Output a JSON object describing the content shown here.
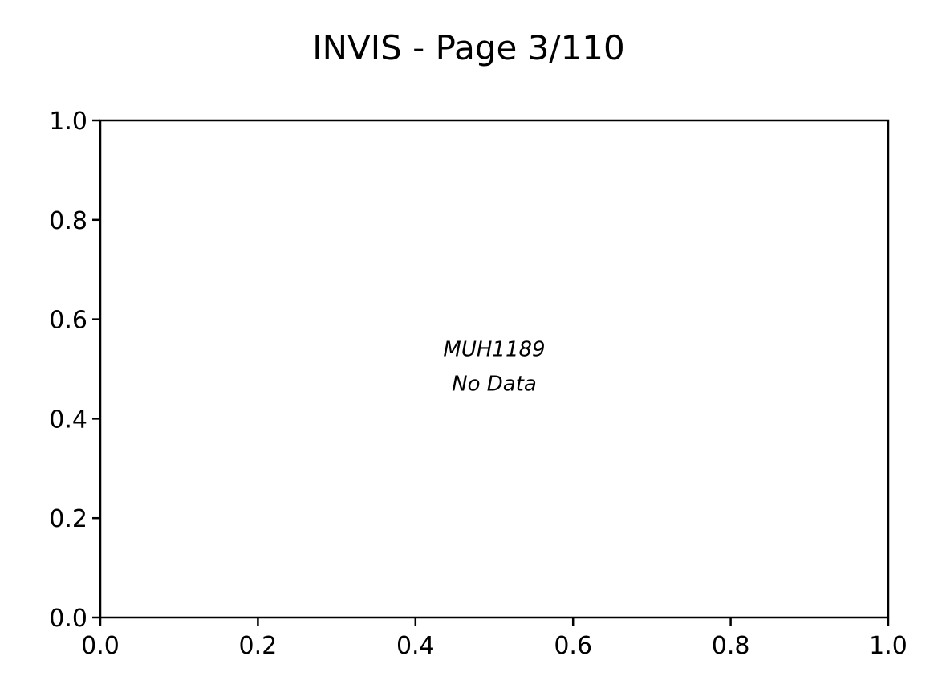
{
  "chart_data": {
    "type": "scatter",
    "title": "INVIS - Page 3/110",
    "xlabel": "",
    "ylabel": "",
    "xlim": [
      0.0,
      1.0
    ],
    "ylim": [
      0.0,
      1.0
    ],
    "x_ticks": [
      "0.0",
      "0.2",
      "0.4",
      "0.6",
      "0.8",
      "1.0"
    ],
    "y_ticks": [
      "0.0",
      "0.2",
      "0.4",
      "0.6",
      "0.8",
      "1.0"
    ],
    "grid": false,
    "series": [],
    "annotation": {
      "line1": "MUH1189",
      "line2": "No Data",
      "x": 0.5,
      "y": 0.5
    }
  },
  "colors": {
    "axis": "#000000",
    "background": "#ffffff"
  }
}
